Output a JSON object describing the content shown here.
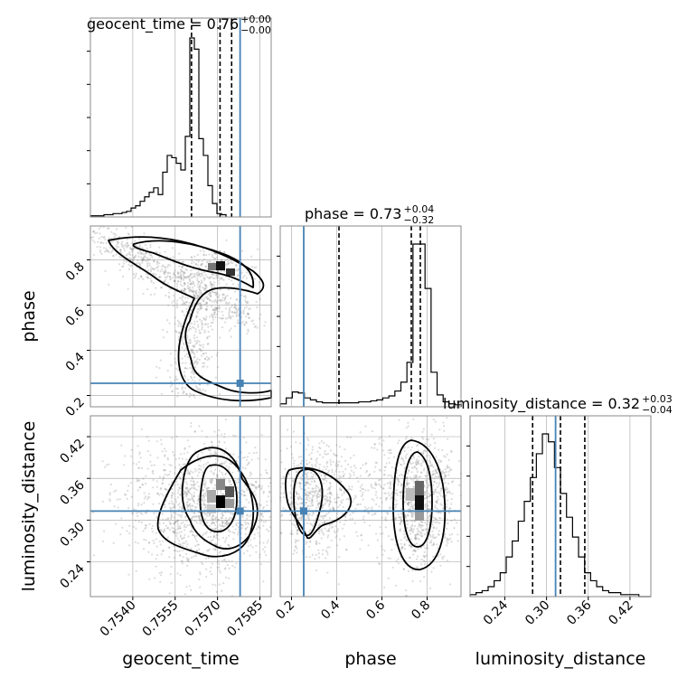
{
  "chart_data": {
    "type": "corner",
    "parameters": [
      "geocent_time",
      "phase",
      "luminosity_distance"
    ],
    "injection": {
      "geocent_time": 0.7578,
      "phase": 0.254,
      "luminosity_distance": 0.313
    },
    "titles": [
      {
        "param": "geocent_time",
        "text": "geocent_time = 0.76",
        "sup": "+0.00",
        "sub": "−0.00"
      },
      {
        "param": "phase",
        "text": "phase = 0.73",
        "sup": "+0.04",
        "sub": "−0.32"
      },
      {
        "param": "luminosity_distance",
        "text": "luminosity_distance = 0.32",
        "sup": "+0.03",
        "sub": "−0.04"
      }
    ],
    "axis_labels": {
      "x": [
        "geocent_time",
        "phase",
        "luminosity_distance"
      ],
      "y": [
        "phase",
        "luminosity_distance"
      ]
    },
    "ranges": {
      "geocent_time": [
        0.7525,
        0.7589
      ],
      "phase": [
        0.15,
        0.95
      ],
      "luminosity_distance": [
        0.19,
        0.45
      ]
    },
    "ticks": {
      "geocent_time": [
        "0.7540",
        "0.7555",
        "0.7570",
        "0.7585"
      ],
      "phase": [
        "0.2",
        "0.4",
        "0.6",
        "0.8"
      ],
      "luminosity_distance": [
        "0.24",
        "0.30",
        "0.36",
        "0.42"
      ]
    },
    "quantiles": {
      "geocent_time": [
        0.75608,
        0.75709,
        0.7575
      ],
      "phase": [
        0.41,
        0.73,
        0.77
      ],
      "luminosity_distance": [
        0.28,
        0.32,
        0.355
      ]
    },
    "hist_geocent_time": {
      "edges_start": 0.7525,
      "bin_width": 0.00016,
      "counts": [
        1,
        1,
        1,
        2,
        2,
        3,
        3,
        4,
        5,
        8,
        10,
        14,
        18,
        22,
        26,
        20,
        40,
        55,
        53,
        48,
        42,
        72,
        160,
        150,
        70,
        55,
        28,
        12,
        3,
        2
      ]
    },
    "hist_phase": {
      "edges_start": 0.15,
      "bin_width": 0.0267,
      "counts": [
        3,
        9,
        15,
        14,
        9,
        7,
        5,
        4,
        4,
        4,
        4,
        4,
        4,
        5,
        5,
        6,
        7,
        9,
        11,
        16,
        25,
        45,
        165,
        165,
        120,
        35,
        12,
        5,
        3,
        2
      ]
    },
    "hist_luminosity_distance": {
      "edges_start": 0.19,
      "bin_width": 0.00867,
      "counts": [
        1,
        2,
        3,
        5,
        8,
        12,
        20,
        28,
        38,
        48,
        60,
        72,
        82,
        78,
        65,
        52,
        40,
        30,
        20,
        12,
        8,
        5,
        3,
        2,
        2,
        1,
        1,
        1,
        0,
        0
      ]
    },
    "colors": {
      "injection": "#4682b4",
      "contour": "#000000",
      "hist": "#000000",
      "grid": "#b0b0b0",
      "points": "#808080"
    }
  }
}
